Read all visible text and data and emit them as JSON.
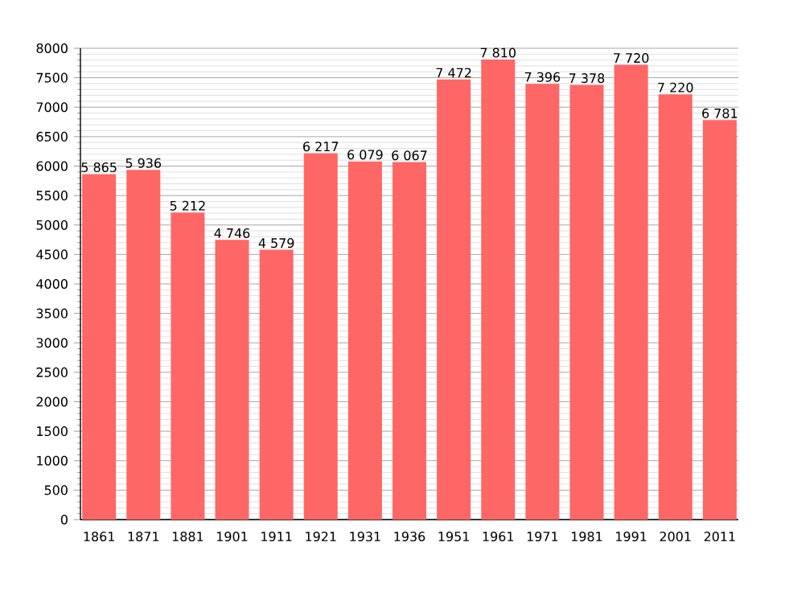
{
  "chart_data": {
    "type": "bar",
    "categories": [
      "1861",
      "1871",
      "1881",
      "1901",
      "1911",
      "1921",
      "1931",
      "1936",
      "1951",
      "1961",
      "1971",
      "1981",
      "1991",
      "2001",
      "2011"
    ],
    "values": [
      5865,
      5936,
      5212,
      4746,
      4579,
      6217,
      6079,
      6067,
      7472,
      7810,
      7396,
      7378,
      7720,
      7220,
      6781
    ],
    "value_labels": [
      "5 865",
      "5 936",
      "5 212",
      "4 746",
      "4 579",
      "6 217",
      "6 079",
      "6 067",
      "7 472",
      "7 810",
      "7 396",
      "7 378",
      "7 720",
      "7 220",
      "6 781"
    ],
    "color": "#ff6666",
    "ylim": [
      0,
      8000
    ],
    "yticks": [
      0,
      500,
      1000,
      1500,
      2000,
      2500,
      3000,
      3500,
      4000,
      4500,
      5000,
      5500,
      6000,
      6500,
      7000,
      7500,
      8000
    ],
    "grid": "y"
  }
}
